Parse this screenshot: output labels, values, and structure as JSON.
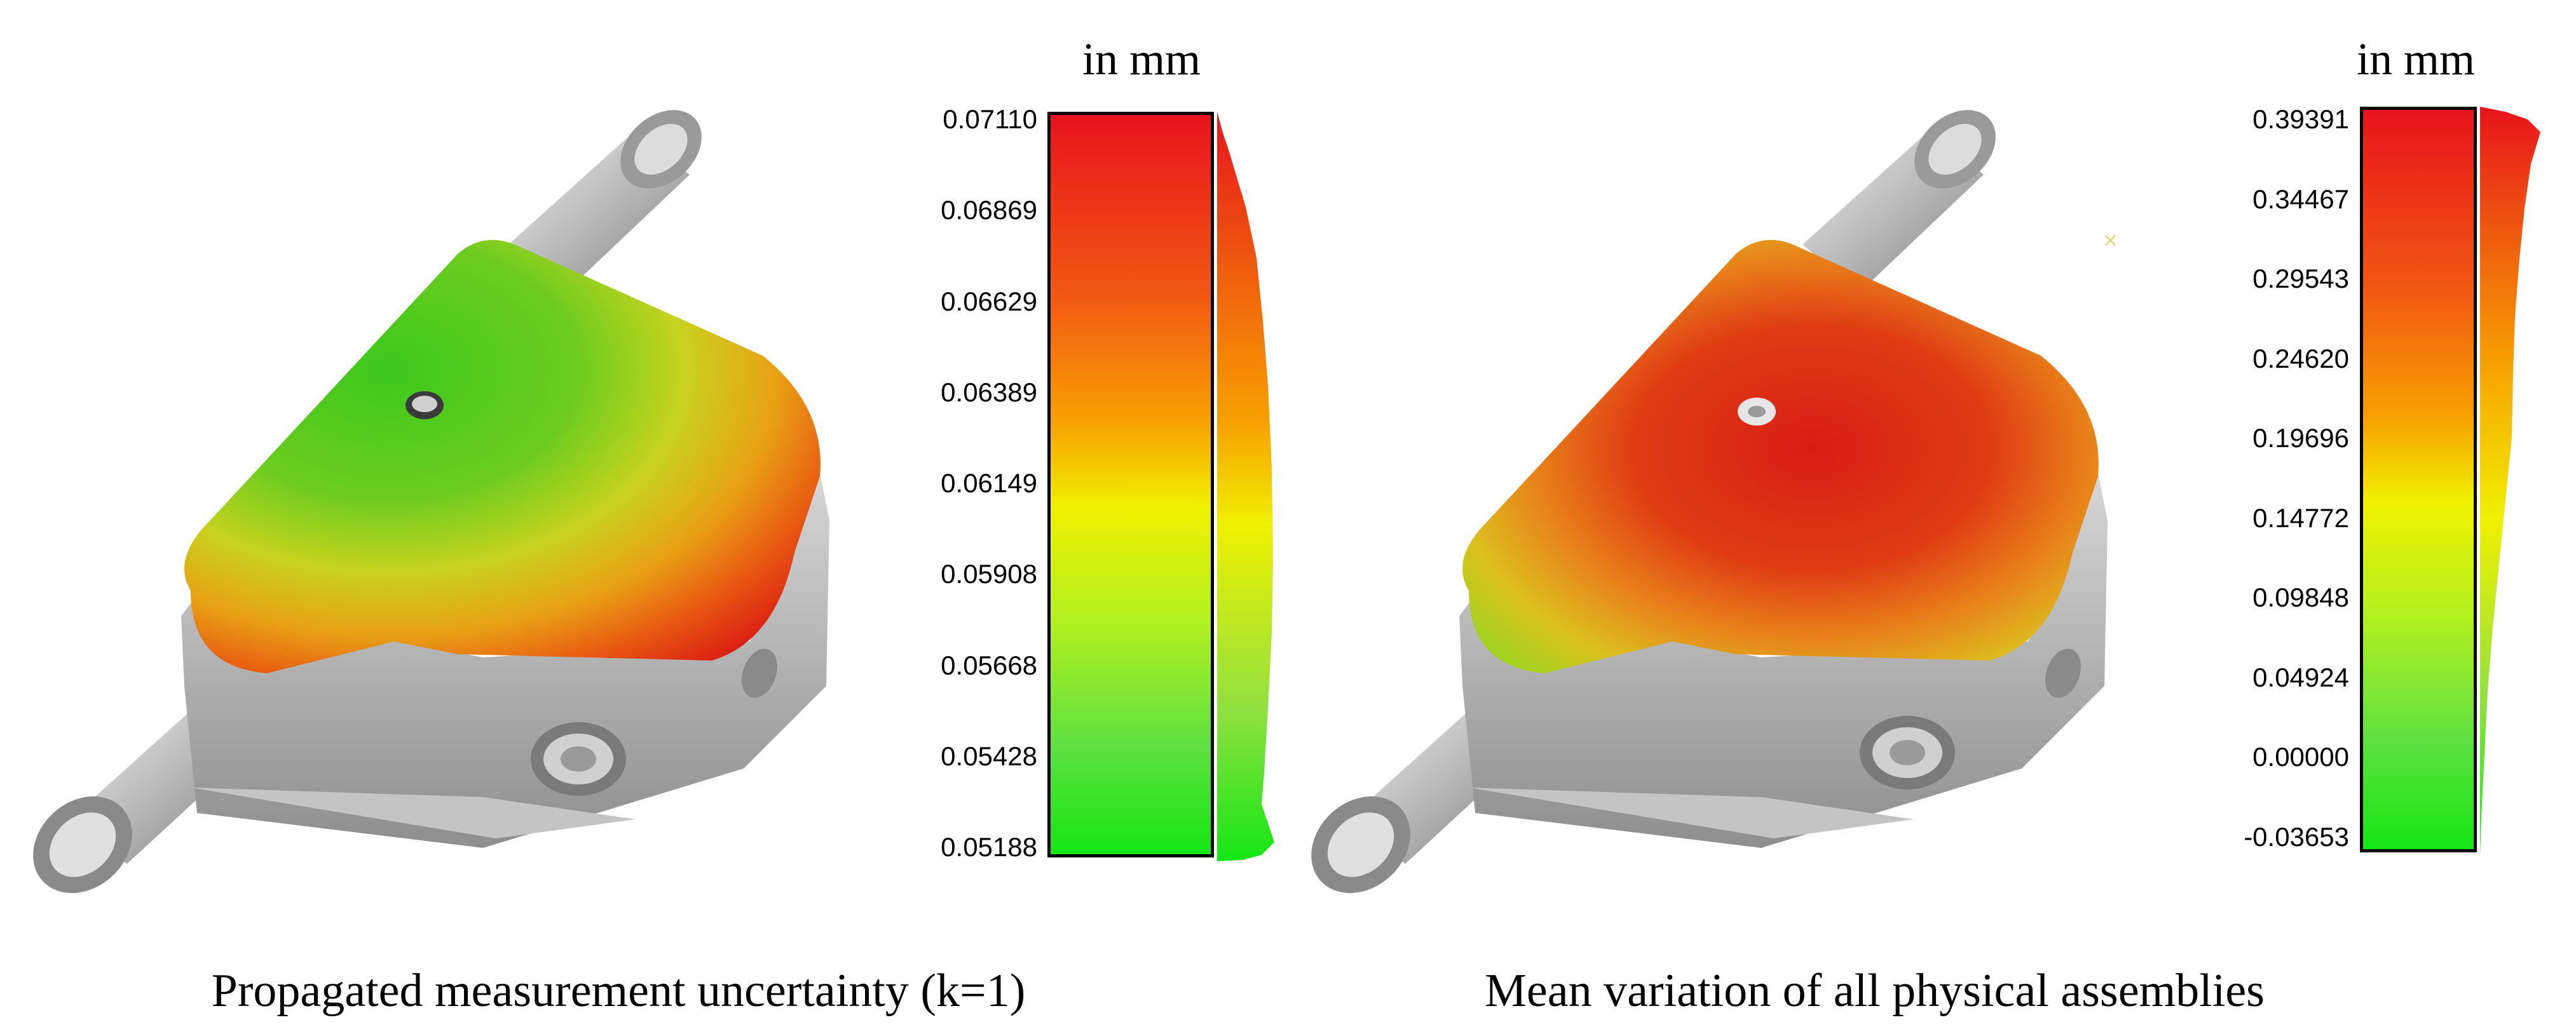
{
  "colors": {
    "scale_top": "#e8141c",
    "scale_mid": "#f0f000",
    "scale_bottom": "#14e614",
    "part_gray": "#c9c9c9"
  },
  "panels": [
    {
      "id": "uncertainty",
      "unit_label": "in mm",
      "scale_ticks": [
        "0.07110",
        "0.06869",
        "0.06629",
        "0.06389",
        "0.06149",
        "0.05908",
        "0.05668",
        "0.05428",
        "0.05188"
      ],
      "caption": "Propagated measurement uncertainty (k=1)"
    },
    {
      "id": "variation",
      "unit_label": "in mm",
      "scale_ticks": [
        "0.39391",
        "0.34467",
        "0.29543",
        "0.24620",
        "0.19696",
        "0.14772",
        "0.09848",
        "0.04924",
        "0.00000",
        "-0.03653"
      ],
      "caption": "Mean variation of all physical assemblies"
    }
  ]
}
